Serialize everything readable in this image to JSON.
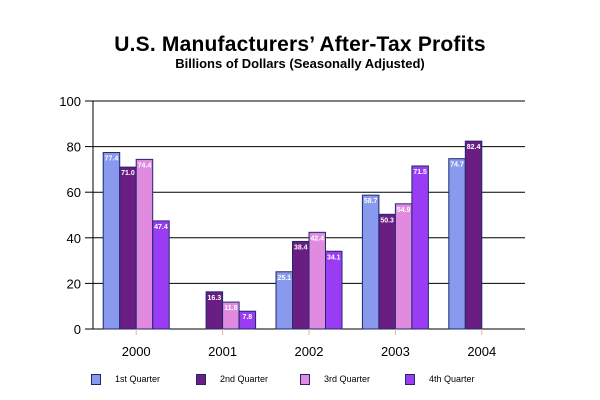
{
  "chart_data": {
    "type": "bar",
    "title": "U.S. Manufacturers’ After-Tax Profits",
    "subtitle": "Billions of Dollars (Seasonally Adjusted)",
    "xlabel": "",
    "ylabel": "",
    "categories": [
      "2000",
      "2001",
      "2002",
      "2003",
      "2004"
    ],
    "ylim": [
      0,
      100
    ],
    "yticks": [
      0,
      20,
      40,
      60,
      80,
      100
    ],
    "grid": true,
    "legend_position": "bottom",
    "series": [
      {
        "name": "1st Quarter",
        "color": "#8899ee",
        "values": [
          77.4,
          0,
          25.1,
          58.7,
          74.7
        ],
        "labels": [
          "77.4",
          "",
          "25.1",
          "58.7",
          "74.7"
        ]
      },
      {
        "name": "2nd Quarter",
        "color": "#6a1e84",
        "values": [
          71.0,
          16.3,
          38.4,
          50.3,
          82.4
        ],
        "labels": [
          "71.0",
          "16.3",
          "38.4",
          "50.3",
          "82.4"
        ]
      },
      {
        "name": "3rd Quarter",
        "color": "#e08ae0",
        "values": [
          74.4,
          11.8,
          42.4,
          54.9,
          null
        ],
        "labels": [
          "74.4",
          "11.8",
          "42.4",
          "54.9",
          ""
        ]
      },
      {
        "name": "4th Quarter",
        "color": "#9b3cf5",
        "values": [
          47.4,
          7.8,
          34.1,
          71.5,
          null
        ],
        "labels": [
          "47.4",
          "7.8",
          "34.1",
          "71.5",
          ""
        ]
      }
    ],
    "bar_border_color": "#1f2a6b"
  }
}
